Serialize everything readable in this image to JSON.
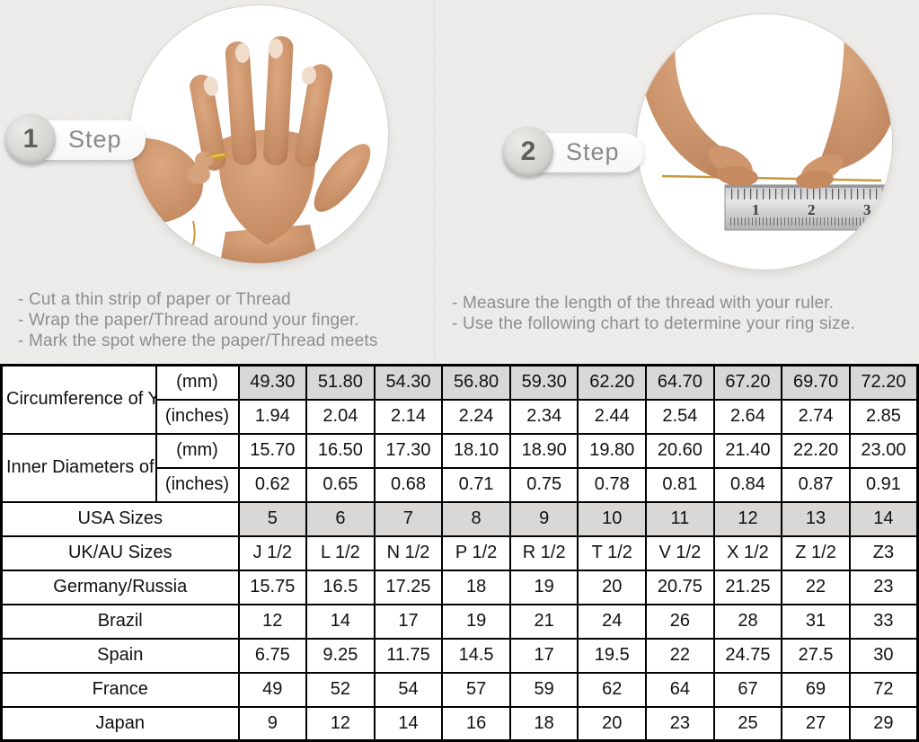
{
  "steps": [
    {
      "number": "1",
      "label": "Step",
      "instructions": [
        "-  Cut a thin strip of paper or Thread",
        "-  Wrap the paper/Thread around your finger.",
        "-  Mark the spot where the paper/Thread meets"
      ]
    },
    {
      "number": "2",
      "label": "Step",
      "instructions": [
        "-  Measure the length of the thread with your ruler.",
        "-  Use the following chart to determine your ring size."
      ]
    }
  ],
  "photos": {
    "left": "hand-with-ring-and-thread-photo",
    "right": "hands-measuring-thread-with-ruler-photo"
  },
  "ruler": {
    "numbers": [
      "1",
      "2",
      "3"
    ]
  },
  "table": {
    "groups": [
      {
        "label": "Circumference of Your Finger",
        "sub_rows": [
          {
            "unit": "(mm)",
            "shaded": true,
            "values": [
              "49.30",
              "51.80",
              "54.30",
              "56.80",
              "59.30",
              "62.20",
              "64.70",
              "67.20",
              "69.70",
              "72.20"
            ]
          },
          {
            "unit": "(inches)",
            "shaded": false,
            "values": [
              "1.94",
              "2.04",
              "2.14",
              "2.24",
              "2.34",
              "2.44",
              "2.54",
              "2.64",
              "2.74",
              "2.85"
            ]
          }
        ]
      },
      {
        "label": "Inner Diameters of Rings",
        "sub_rows": [
          {
            "unit": "(mm)",
            "shaded": false,
            "values": [
              "15.70",
              "16.50",
              "17.30",
              "18.10",
              "18.90",
              "19.80",
              "20.60",
              "21.40",
              "22.20",
              "23.00"
            ]
          },
          {
            "unit": "(inches)",
            "shaded": false,
            "values": [
              "0.62",
              "0.65",
              "0.68",
              "0.71",
              "0.75",
              "0.78",
              "0.81",
              "0.84",
              "0.87",
              "0.91"
            ]
          }
        ]
      }
    ],
    "size_rows": [
      {
        "label": "USA Sizes",
        "shaded": true,
        "values": [
          "5",
          "6",
          "7",
          "8",
          "9",
          "10",
          "11",
          "12",
          "13",
          "14"
        ]
      },
      {
        "label": "UK/AU Sizes",
        "shaded": false,
        "values": [
          "J 1/2",
          "L 1/2",
          "N 1/2",
          "P 1/2",
          "R 1/2",
          "T 1/2",
          "V 1/2",
          "X 1/2",
          "Z 1/2",
          "Z3"
        ]
      },
      {
        "label": "Germany/Russia",
        "shaded": false,
        "values": [
          "15.75",
          "16.5",
          "17.25",
          "18",
          "19",
          "20",
          "20.75",
          "21.25",
          "22",
          "23"
        ]
      },
      {
        "label": "Brazil",
        "shaded": false,
        "values": [
          "12",
          "14",
          "17",
          "19",
          "21",
          "24",
          "26",
          "28",
          "31",
          "33"
        ]
      },
      {
        "label": "Spain",
        "shaded": false,
        "values": [
          "6.75",
          "9.25",
          "11.75",
          "14.5",
          "17",
          "19.5",
          "22",
          "24.75",
          "27.5",
          "30"
        ]
      },
      {
        "label": "France",
        "shaded": false,
        "values": [
          "49",
          "52",
          "54",
          "57",
          "59",
          "62",
          "64",
          "67",
          "69",
          "72"
        ]
      },
      {
        "label": "Japan",
        "shaded": false,
        "values": [
          "9",
          "12",
          "14",
          "16",
          "18",
          "20",
          "23",
          "25",
          "27",
          "29"
        ]
      }
    ]
  },
  "colors": {
    "background": "#ebe9e6",
    "table_background": "#ffffff",
    "shaded_cell": "#d9d8d6",
    "table_border": "#000000",
    "muted_text": "#8f8e8a",
    "gold_thread": "#c49a3f",
    "skin_tone": "#cd9371"
  }
}
